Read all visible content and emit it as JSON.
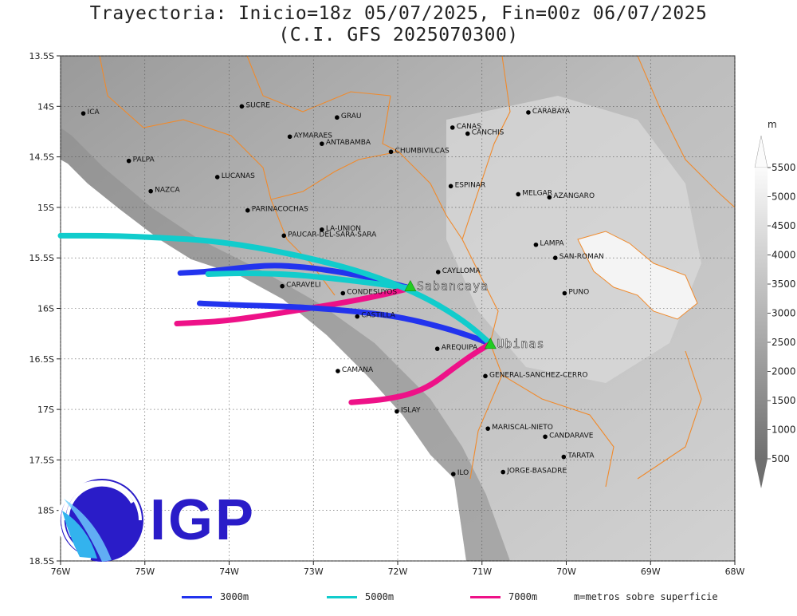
{
  "title": {
    "line1": "Trayectoria: Inicio=18z 05/07/2025, Fin=00z 06/07/2025",
    "line2": "(C.I. GFS 2025070300)"
  },
  "map": {
    "lon_range": [
      -76,
      -68
    ],
    "lat_range": [
      -18.5,
      -13.5
    ],
    "x_ticks": [
      "76W",
      "75W",
      "74W",
      "73W",
      "72W",
      "71W",
      "70W",
      "69W",
      "68W"
    ],
    "y_ticks": [
      "13.5S",
      "14S",
      "14.5S",
      "15S",
      "15.5S",
      "16S",
      "16.5S",
      "17S",
      "17.5S",
      "18S",
      "18.5S"
    ],
    "grid": "dotted"
  },
  "cities": [
    {
      "name": "ICA",
      "lon": -75.73,
      "lat": -14.07
    },
    {
      "name": "SUCRE",
      "lon": -73.85,
      "lat": -14.0
    },
    {
      "name": "GRAU",
      "lon": -72.72,
      "lat": -14.11
    },
    {
      "name": "CARABAYA",
      "lon": -70.45,
      "lat": -14.06
    },
    {
      "name": "CANAS",
      "lon": -71.35,
      "lat": -14.21
    },
    {
      "name": "CANCHIS",
      "lon": -71.17,
      "lat": -14.27
    },
    {
      "name": "AYMARAES",
      "lon": -73.28,
      "lat": -14.3
    },
    {
      "name": "ANTABAMBA",
      "lon": -72.9,
      "lat": -14.37
    },
    {
      "name": "CHUMBIVILCAS",
      "lon": -72.08,
      "lat": -14.45
    },
    {
      "name": "PALPA",
      "lon": -75.19,
      "lat": -14.54
    },
    {
      "name": "LUCANAS",
      "lon": -74.14,
      "lat": -14.7
    },
    {
      "name": "NAZCA",
      "lon": -74.93,
      "lat": -14.84
    },
    {
      "name": "ESPINAR",
      "lon": -71.37,
      "lat": -14.79
    },
    {
      "name": "MELGAR",
      "lon": -70.57,
      "lat": -14.87
    },
    {
      "name": "AZANGARO",
      "lon": -70.2,
      "lat": -14.9
    },
    {
      "name": "PARINACOCHAS",
      "lon": -73.78,
      "lat": -15.03
    },
    {
      "name": "LA-UNION",
      "lon": -72.9,
      "lat": -15.22
    },
    {
      "name": "PAUCAR-DEL-SARA-SARA",
      "lon": -73.35,
      "lat": -15.28
    },
    {
      "name": "LAMPA",
      "lon": -70.36,
      "lat": -15.37
    },
    {
      "name": "SAN-ROMAN",
      "lon": -70.13,
      "lat": -15.5
    },
    {
      "name": "CAYLLOMA",
      "lon": -71.52,
      "lat": -15.64
    },
    {
      "name": "CARAVELI",
      "lon": -73.37,
      "lat": -15.78
    },
    {
      "name": "CONDESUYOS",
      "lon": -72.65,
      "lat": -15.85
    },
    {
      "name": "PUNO",
      "lon": -70.02,
      "lat": -15.85
    },
    {
      "name": "CASTILLA",
      "lon": -72.48,
      "lat": -16.08
    },
    {
      "name": "AREQUIPA",
      "lon": -71.53,
      "lat": -16.4
    },
    {
      "name": "GENERAL-SANCHEZ-CERRO",
      "lon": -70.96,
      "lat": -16.67
    },
    {
      "name": "CAMANA",
      "lon": -72.71,
      "lat": -16.62
    },
    {
      "name": "ISLAY",
      "lon": -72.01,
      "lat": -17.02
    },
    {
      "name": "MARISCAL-NIETO",
      "lon": -70.93,
      "lat": -17.19
    },
    {
      "name": "CANDARAVE",
      "lon": -70.25,
      "lat": -17.27
    },
    {
      "name": "TARATA",
      "lon": -70.03,
      "lat": -17.47
    },
    {
      "name": "ILO",
      "lon": -71.34,
      "lat": -17.64
    },
    {
      "name": "JORGE-BASADRE",
      "lon": -70.75,
      "lat": -17.62
    }
  ],
  "volcanoes": [
    {
      "name": "Sabancaya",
      "lon": -71.85,
      "lat": -15.78
    },
    {
      "name": "Ubinas",
      "lon": -70.9,
      "lat": -16.35
    }
  ],
  "trajectories": [
    {
      "source": "Sabancaya",
      "level": "3000m",
      "color": "#2233ee",
      "points": [
        [
          -71.85,
          -15.8
        ],
        [
          -72.2,
          -15.72
        ],
        [
          -72.6,
          -15.65
        ],
        [
          -73.1,
          -15.59
        ],
        [
          -73.5,
          -15.57
        ],
        [
          -73.9,
          -15.6
        ],
        [
          -74.3,
          -15.64
        ],
        [
          -74.58,
          -15.65
        ]
      ]
    },
    {
      "source": "Sabancaya",
      "level": "5000m",
      "color": "#11cccc",
      "points": [
        [
          -71.85,
          -15.8
        ],
        [
          -72.3,
          -15.75
        ],
        [
          -72.8,
          -15.7
        ],
        [
          -73.3,
          -15.66
        ],
        [
          -73.85,
          -15.65
        ],
        [
          -74.25,
          -15.66
        ]
      ]
    },
    {
      "source": "Sabancaya",
      "level": "7000m",
      "color": "#ee1188",
      "points": [
        [
          -71.85,
          -15.8
        ],
        [
          -72.3,
          -15.89
        ],
        [
          -72.9,
          -15.98
        ],
        [
          -73.5,
          -16.06
        ],
        [
          -74.0,
          -16.12
        ],
        [
          -74.35,
          -16.14
        ],
        [
          -74.62,
          -16.15
        ]
      ]
    },
    {
      "source": "Ubinas",
      "level": "3000m",
      "color": "#2233ee",
      "points": [
        [
          -70.9,
          -16.35
        ],
        [
          -71.15,
          -16.27
        ],
        [
          -71.5,
          -16.18
        ],
        [
          -72.0,
          -16.08
        ],
        [
          -72.6,
          -16.02
        ],
        [
          -73.3,
          -15.98
        ],
        [
          -73.8,
          -15.97
        ],
        [
          -74.35,
          -15.95
        ]
      ]
    },
    {
      "source": "Ubinas",
      "level": "5000m",
      "color": "#11cccc",
      "points": [
        [
          -70.9,
          -16.35
        ],
        [
          -71.1,
          -16.2
        ],
        [
          -71.35,
          -16.05
        ],
        [
          -71.7,
          -15.88
        ],
        [
          -72.2,
          -15.7
        ],
        [
          -72.8,
          -15.55
        ],
        [
          -73.5,
          -15.42
        ],
        [
          -74.2,
          -15.33
        ],
        [
          -74.8,
          -15.3
        ],
        [
          -75.4,
          -15.28
        ],
        [
          -76.0,
          -15.28
        ]
      ]
    },
    {
      "source": "Ubinas",
      "level": "7000m",
      "color": "#ee1188",
      "points": [
        [
          -70.9,
          -16.35
        ],
        [
          -71.1,
          -16.45
        ],
        [
          -71.35,
          -16.6
        ],
        [
          -71.6,
          -16.76
        ],
        [
          -71.85,
          -16.85
        ],
        [
          -72.15,
          -16.9
        ],
        [
          -72.4,
          -16.92
        ],
        [
          -72.55,
          -16.93
        ]
      ]
    }
  ],
  "colorbar": {
    "unit": "m",
    "labels": [
      "500",
      "1000",
      "1500",
      "2000",
      "2500",
      "3000",
      "3500",
      "4000",
      "4500",
      "5000",
      "5500"
    ]
  },
  "legend": {
    "items": [
      {
        "label": "3000m",
        "color": "#2233ee"
      },
      {
        "label": "5000m",
        "color": "#11cccc"
      },
      {
        "label": "7000m",
        "color": "#ee1188"
      }
    ],
    "note": "m=metros sobre superficie"
  },
  "logo": {
    "text": "IGP",
    "color": "#2a1cc8"
  }
}
